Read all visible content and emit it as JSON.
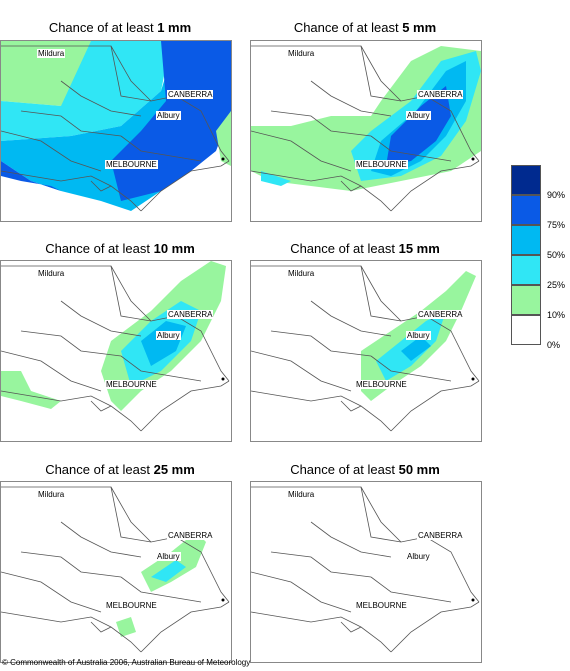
{
  "panels": [
    {
      "title_prefix": "Chance of at least ",
      "title_amount": "1 mm",
      "cities": {
        "mildura": "Mildura",
        "canberra": "CANBERRA",
        "albury": "Albury",
        "melbourne": "MELBOURNE"
      }
    },
    {
      "title_prefix": "Chance of at least ",
      "title_amount": "5 mm",
      "cities": {
        "mildura": "Mildura",
        "canberra": "CANBERRA",
        "albury": "Albury",
        "melbourne": "MELBOURNE"
      }
    },
    {
      "title_prefix": "Chance of at least ",
      "title_amount": "10 mm",
      "cities": {
        "mildura": "Mildura",
        "canberra": "CANBERRA",
        "albury": "Albury",
        "melbourne": "MELBOURNE"
      }
    },
    {
      "title_prefix": "Chance of at least ",
      "title_amount": "15 mm",
      "cities": {
        "mildura": "Mildura",
        "canberra": "CANBERRA",
        "albury": "Albury",
        "melbourne": "MELBOURNE"
      }
    },
    {
      "title_prefix": "Chance of at least ",
      "title_amount": "25 mm",
      "cities": {
        "mildura": "Mildura",
        "canberra": "CANBERRA",
        "albury": "Albury",
        "melbourne": "MELBOURNE"
      }
    },
    {
      "title_prefix": "Chance of at least ",
      "title_amount": "50 mm",
      "cities": {
        "mildura": "Mildura",
        "canberra": "CANBERRA",
        "albury": "Albury",
        "melbourne": "MELBOURNE"
      }
    }
  ],
  "legend": {
    "labels": [
      "90%",
      "75%",
      "50%",
      "25%",
      "10%",
      "0%"
    ],
    "colors": [
      "#002a8f",
      "#0a5ae6",
      "#00b9f2",
      "#30e6f5",
      "#98f59e",
      "#ffffff"
    ]
  },
  "copyright": "© Commonwealth of Australia 2006, Australian Bureau of Meteorology"
}
